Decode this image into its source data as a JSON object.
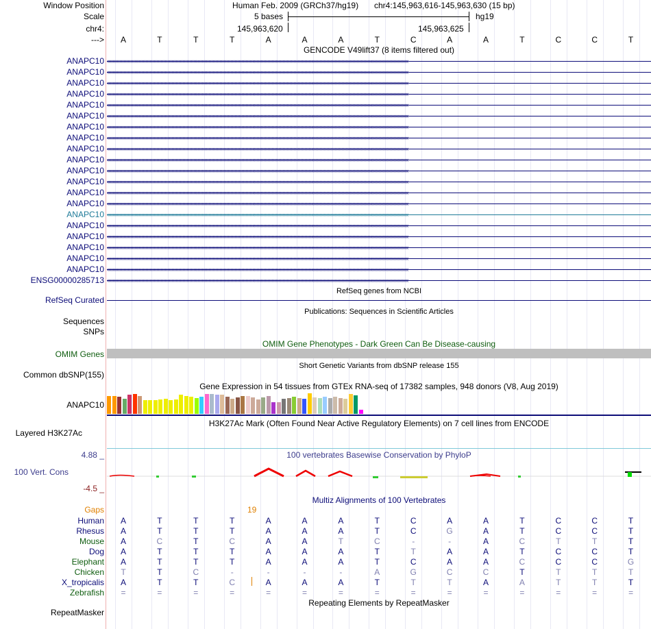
{
  "header": {
    "window_position_label": "Window Position",
    "scale_label": "Scale",
    "chrom_label": "chr4:",
    "arrow_label": "--->",
    "assembly": "Human Feb. 2009 (GRCh37/hg19)",
    "position": "chr4:145,963,616-145,963,630 (15 bp)",
    "scale_text": "5 bases",
    "scale_db": "hg19",
    "coord_left": "145,963,620",
    "coord_right": "145,963,625"
  },
  "sequence": [
    "A",
    "T",
    "T",
    "T",
    "A",
    "A",
    "A",
    "T",
    "C",
    "A",
    "A",
    "T",
    "C",
    "C",
    "T"
  ],
  "gencode": {
    "title": "GENCODE V49lift37 (8 items filtered out)",
    "items": [
      {
        "label": "ANAPC10",
        "highlight": false
      },
      {
        "label": "ANAPC10",
        "highlight": false
      },
      {
        "label": "ANAPC10",
        "highlight": false
      },
      {
        "label": "ANAPC10",
        "highlight": false
      },
      {
        "label": "ANAPC10",
        "highlight": false
      },
      {
        "label": "ANAPC10",
        "highlight": false
      },
      {
        "label": "ANAPC10",
        "highlight": false
      },
      {
        "label": "ANAPC10",
        "highlight": false
      },
      {
        "label": "ANAPC10",
        "highlight": false
      },
      {
        "label": "ANAPC10",
        "highlight": false
      },
      {
        "label": "ANAPC10",
        "highlight": false
      },
      {
        "label": "ANAPC10",
        "highlight": false
      },
      {
        "label": "ANAPC10",
        "highlight": false
      },
      {
        "label": "ANAPC10",
        "highlight": false
      },
      {
        "label": "ANAPC10",
        "highlight": true
      },
      {
        "label": "ANAPC10",
        "highlight": false
      },
      {
        "label": "ANAPC10",
        "highlight": false
      },
      {
        "label": "ANAPC10",
        "highlight": false
      },
      {
        "label": "ANAPC10",
        "highlight": false
      },
      {
        "label": "ANAPC10",
        "highlight": false
      },
      {
        "label": "ENSG00000285713",
        "highlight": false
      }
    ]
  },
  "refseq": {
    "title": "RefSeq genes from NCBI",
    "label": "RefSeq Curated"
  },
  "publications": {
    "title": "Publications: Sequences in Scientific Articles",
    "label": "Sequences"
  },
  "snps": {
    "label": "SNPs"
  },
  "omim": {
    "title": "OMIM Gene Phenotypes - Dark Green Can Be Disease-causing",
    "label": "OMIM Genes"
  },
  "dbsnp": {
    "title": "Short Genetic Variants from dbSNP release 155",
    "label": "Common dbSNP(155)"
  },
  "gtex": {
    "title": "Gene Expression in 54 tissues from GTEx RNA-seq of 17382 samples, 948 donors (V8, Aug 2019)",
    "label": "ANAPC10",
    "colors": [
      "#ff9900",
      "#ff9900",
      "#993333",
      "#66aa66",
      "#cc3366",
      "#ff3300",
      "#cc9977",
      "#eeee00",
      "#eeee00",
      "#eeee00",
      "#eeee00",
      "#eeee00",
      "#eeee00",
      "#eeee00",
      "#eeee00",
      "#eeee00",
      "#eeee00",
      "#99ff00",
      "#33ccff",
      "#ff66cc",
      "#aabbcc",
      "#aaaaee",
      "#ddbb99",
      "#996655",
      "#ccaa88",
      "#885544",
      "#aa7744",
      "#eecccc",
      "#ccaa99",
      "#ccaa99",
      "#99aa88",
      "#bb99aa",
      "#aa33cc",
      "#cc99aa",
      "#777777",
      "#998877",
      "#88cc33",
      "#ccaa88",
      "#3355ff",
      "#ffcc00",
      "#ddccbb",
      "#aaddbb",
      "#99ccff",
      "#aaaaaa",
      "#ccbbaa",
      "#ccaa99",
      "#ddcc99",
      "#ffcc33",
      "#009966",
      "#ff00ff"
    ],
    "values": [
      0.87,
      0.87,
      0.82,
      0.73,
      0.93,
      0.97,
      0.87,
      0.67,
      0.67,
      0.67,
      0.7,
      0.73,
      0.67,
      0.7,
      0.93,
      0.87,
      0.83,
      0.77,
      0.83,
      0.97,
      0.97,
      0.93,
      0.93,
      0.83,
      0.73,
      0.8,
      0.87,
      0.87,
      0.8,
      0.7,
      0.8,
      0.87,
      0.57,
      0.57,
      0.73,
      0.77,
      0.83,
      0.77,
      0.73,
      1.0,
      0.8,
      0.77,
      0.83,
      0.77,
      0.83,
      0.77,
      0.73,
      0.97,
      0.9,
      0.2
    ]
  },
  "h3k27ac": {
    "title": "H3K27Ac Mark (Often Found Near Active Regulatory Elements) on 7 cell lines from ENCODE",
    "label": "Layered H3K27Ac"
  },
  "phylop": {
    "title": "100 vertebrates Basewise Conservation by PhyloP",
    "label": "100 Vert. Cons",
    "max": "4.88 _",
    "min": "-4.5 _"
  },
  "multiz": {
    "title": "Multiz Alignments of 100 Vertebrates",
    "gaps_label": "Gaps",
    "gap_count": "19",
    "species": [
      {
        "name": "Human",
        "color": "#0c0c78",
        "bases": [
          "A",
          "T",
          "T",
          "T",
          "A",
          "A",
          "A",
          "T",
          "C",
          "A",
          "A",
          "T",
          "C",
          "C",
          "T"
        ],
        "dim": []
      },
      {
        "name": "Rhesus",
        "color": "#0c0c78",
        "bases": [
          "A",
          "T",
          "T",
          "T",
          "A",
          "A",
          "A",
          "T",
          "C",
          "G",
          "A",
          "T",
          "C",
          "C",
          "T"
        ],
        "dim": [
          9
        ]
      },
      {
        "name": "Mouse",
        "color": "#0e5c0e",
        "bases": [
          "A",
          "C",
          "T",
          "C",
          "A",
          "A",
          "T",
          "C",
          "-",
          "-",
          "A",
          "C",
          "T",
          "T",
          "T"
        ],
        "dim": [
          1,
          3,
          6,
          7,
          8,
          9,
          11,
          12,
          13
        ]
      },
      {
        "name": "Dog",
        "color": "#0c0c78",
        "bases": [
          "A",
          "T",
          "T",
          "T",
          "A",
          "A",
          "A",
          "T",
          "T",
          "A",
          "A",
          "T",
          "C",
          "C",
          "T"
        ],
        "dim": [
          8
        ]
      },
      {
        "name": "Elephant",
        "color": "#0e5c0e",
        "bases": [
          "A",
          "T",
          "T",
          "T",
          "A",
          "A",
          "A",
          "T",
          "C",
          "A",
          "A",
          "C",
          "C",
          "C",
          "G"
        ],
        "dim": [
          11,
          14
        ]
      },
      {
        "name": "Chicken",
        "color": "#0e5c0e",
        "bases": [
          "T",
          "T",
          "C",
          "-",
          "-",
          "-",
          "-",
          "A",
          "G",
          "C",
          "C",
          "T",
          "T",
          "T",
          "T"
        ],
        "dim": [
          0,
          2,
          3,
          4,
          5,
          6,
          7,
          8,
          9,
          10,
          12,
          13,
          14
        ]
      },
      {
        "name": "X_tropicalis",
        "color": "#0c0c78",
        "bases": [
          "A",
          "T",
          "T",
          "C",
          "A",
          "A",
          "A",
          "T",
          "T",
          "T",
          "A",
          "A",
          "T",
          "T",
          "T"
        ],
        "dim": [
          3,
          8,
          9,
          11,
          12,
          13
        ]
      },
      {
        "name": "Zebrafish",
        "color": "#0e5c0e",
        "bases": [
          "=",
          "=",
          "=",
          "=",
          "=",
          "=",
          "=",
          "=",
          "=",
          "=",
          "=",
          "=",
          "=",
          "=",
          "="
        ],
        "dim": [
          0,
          1,
          2,
          3,
          4,
          5,
          6,
          7,
          8,
          9,
          10,
          11,
          12,
          13,
          14
        ]
      }
    ]
  },
  "repeatmasker": {
    "title": "Repeating Elements by RepeatMasker",
    "label": "RepeatMasker"
  }
}
